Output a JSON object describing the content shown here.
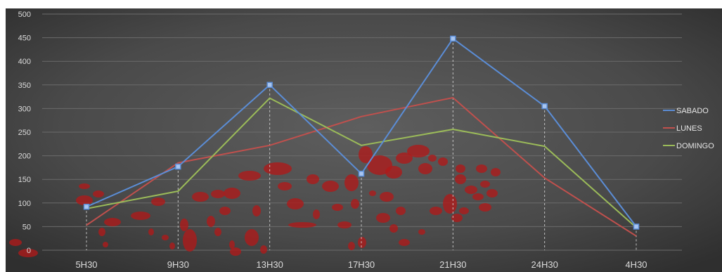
{
  "chart_data": {
    "type": "line",
    "title": "",
    "xlabel": "",
    "ylabel": "",
    "categories": [
      "5H30",
      "9H30",
      "13H30",
      "17H30",
      "21H30",
      "24H30",
      "4H30"
    ],
    "y_ticks": [
      "0",
      "50",
      "100",
      "150",
      "200",
      "250",
      "300",
      "350",
      "400",
      "450",
      "500"
    ],
    "ylim": [
      0,
      500
    ],
    "grid": true,
    "legend_position": "right",
    "series": [
      {
        "name": "SABADO",
        "color": "#5b8dd6",
        "values": [
          92,
          177,
          350,
          162,
          448,
          305,
          50
        ],
        "markers": true
      },
      {
        "name": "LUNES",
        "color": "#c0504d",
        "values": [
          53,
          185,
          222,
          283,
          323,
          153,
          30
        ],
        "markers": false
      },
      {
        "name": "DOMINGO",
        "color": "#9bbb59",
        "values": [
          88,
          125,
          322,
          222,
          256,
          220,
          48
        ],
        "markers": false
      }
    ],
    "colors": {
      "background_outer": "#3a3a3a",
      "background_inner": "#555555",
      "gridline": "#6b6b6b",
      "dropline": "#e0e0e0",
      "overlay_stains": "#b01a1a"
    }
  }
}
